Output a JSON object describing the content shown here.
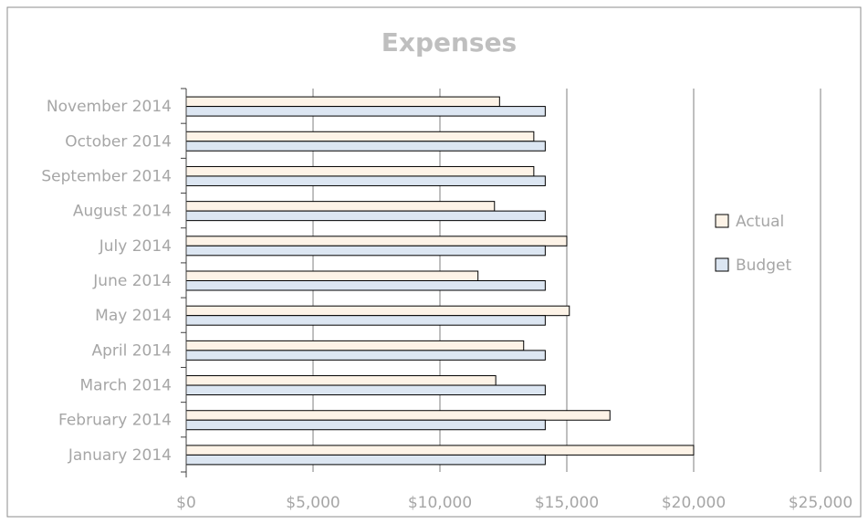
{
  "chart_data": {
    "type": "bar",
    "orientation": "horizontal",
    "title": "Expenses",
    "categories": [
      "January 2014",
      "February 2014",
      "March 2014",
      "April 2014",
      "May 2014",
      "June 2014",
      "July 2014",
      "August 2014",
      "September 2014",
      "October 2014",
      "November 2014"
    ],
    "series": [
      {
        "name": "Actual",
        "color": "#fdf3e7",
        "values": [
          20000,
          16700,
          12200,
          13300,
          15100,
          11500,
          15000,
          12150,
          13700,
          13700,
          12350
        ]
      },
      {
        "name": "Budget",
        "color": "#dce6f2",
        "values": [
          14150,
          14150,
          14150,
          14150,
          14150,
          14150,
          14150,
          14150,
          14150,
          14150,
          14150
        ]
      }
    ],
    "xlim": [
      0,
      25000
    ],
    "x_ticks": [
      0,
      5000,
      10000,
      15000,
      20000,
      25000
    ],
    "x_tick_labels": [
      "$0",
      "$5,000",
      "$10,000",
      "$15,000",
      "$20,000",
      "$25,000"
    ],
    "grid": true,
    "legend_position": "right"
  }
}
